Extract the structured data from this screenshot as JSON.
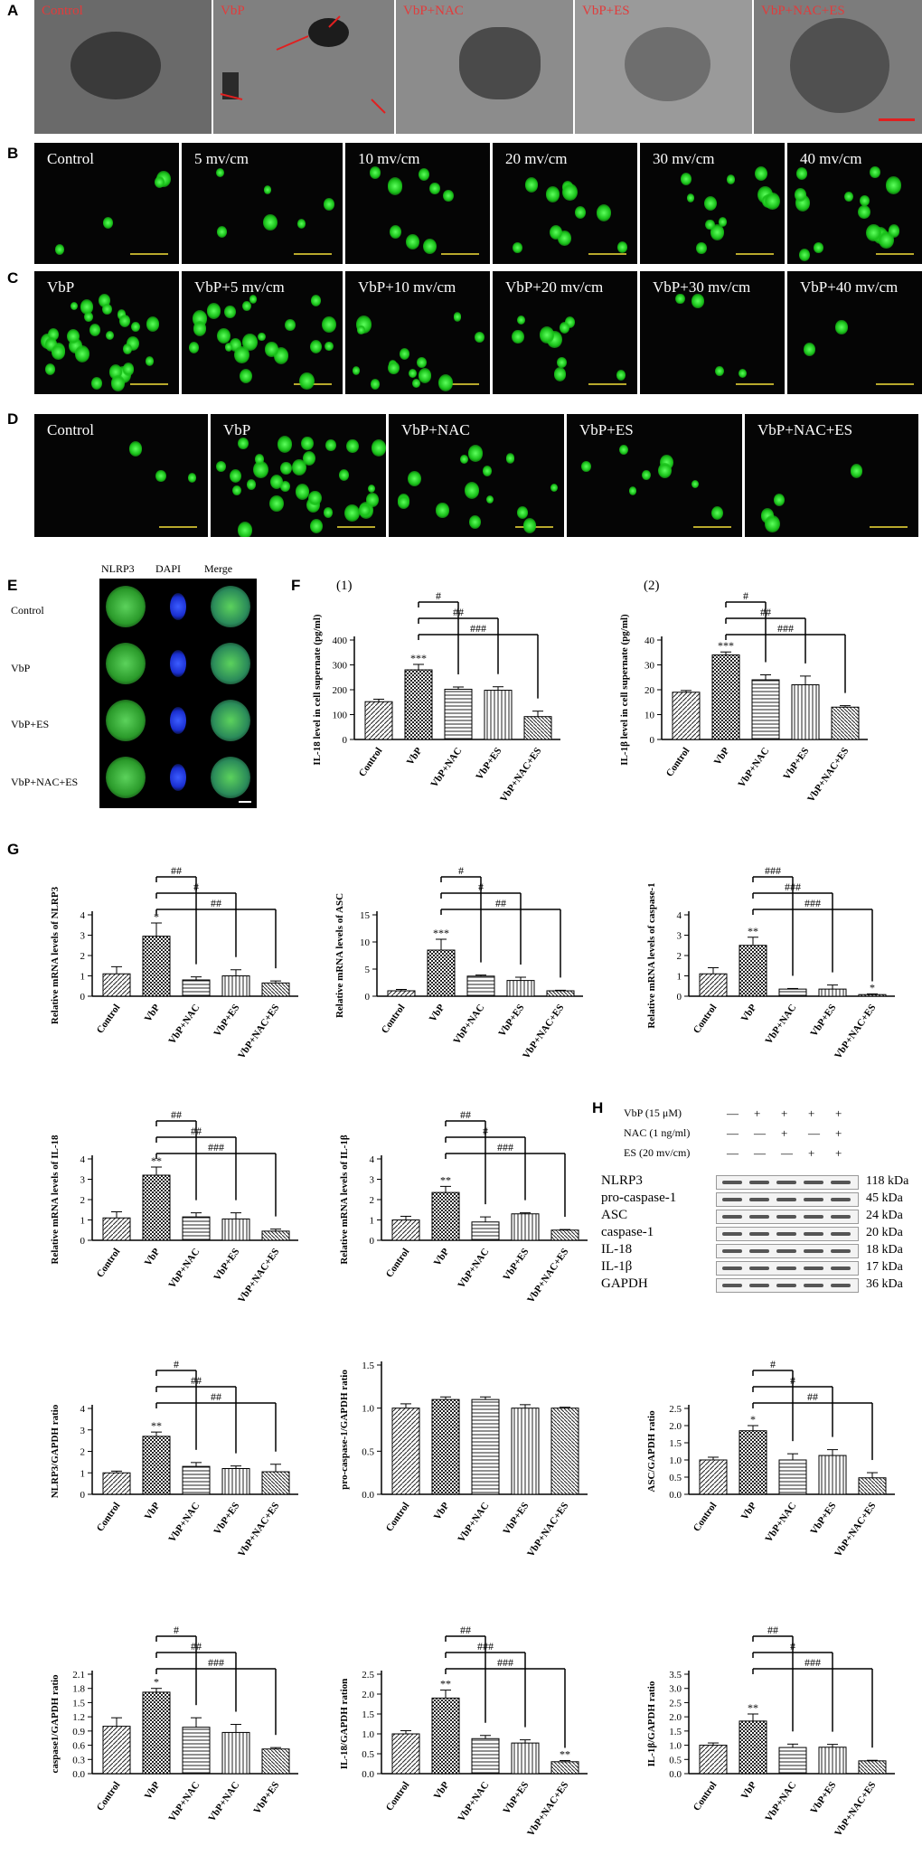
{
  "panels": {
    "A": {
      "letter": "A",
      "labels": [
        "Control",
        "VbP",
        "VbP+NAC",
        "VbP+ES",
        "VbP+NAC+ES"
      ]
    },
    "B": {
      "letter": "B",
      "labels": [
        "Control",
        "5 mv/cm",
        "10 mv/cm",
        "20 mv/cm",
        "30 mv/cm",
        "40 mv/cm"
      ]
    },
    "C": {
      "letter": "C",
      "labels": [
        "VbP",
        "VbP+5 mv/cm",
        "VbP+10 mv/cm",
        "VbP+20 mv/cm",
        "VbP+30 mv/cm",
        "VbP+40 mv/cm"
      ]
    },
    "D": {
      "letter": "D",
      "labels": [
        "Control",
        "VbP",
        "VbP+NAC",
        "VbP+ES",
        "VbP+NAC+ES"
      ]
    },
    "E": {
      "letter": "E",
      "columns": [
        "NLRP3",
        "DAPI",
        "Merge"
      ],
      "rows": [
        "Control",
        "VbP",
        "VbP+ES",
        "VbP+NAC+ES"
      ]
    },
    "F": {
      "letter": "F"
    },
    "G": {
      "letter": "G"
    },
    "H": {
      "letter": "H",
      "conditions": [
        {
          "label": "VbP (15 μM)",
          "signs": [
            "—",
            "+",
            "+",
            "+",
            "+"
          ]
        },
        {
          "label": "NAC (1 ng/ml)",
          "signs": [
            "—",
            "—",
            "+",
            "—",
            "+"
          ]
        },
        {
          "label": "ES (20 mv/cm)",
          "signs": [
            "—",
            "—",
            "—",
            "+",
            "+"
          ]
        }
      ],
      "bands": [
        {
          "name": "NLRP3",
          "kda": "118 kDa"
        },
        {
          "name": "pro-caspase-1",
          "kda": "45 kDa"
        },
        {
          "name": "ASC",
          "kda": "24 kDa"
        },
        {
          "name": "caspase-1",
          "kda": "20 kDa"
        },
        {
          "name": "IL-18",
          "kda": "18 kDa"
        },
        {
          "name": "IL-1β",
          "kda": "17 kDa"
        },
        {
          "name": "GAPDH",
          "kda": "36 kDa"
        }
      ]
    }
  },
  "chart_data": [
    {
      "type": "bar",
      "panel": "F(1)",
      "subtitle": "(1)",
      "categories": [
        "Control",
        "VbP",
        "VbP+NAC",
        "VbP+ES",
        "VbP+NAC+ES"
      ],
      "values": [
        152,
        280,
        202,
        198,
        92
      ],
      "errors": [
        10,
        22,
        9,
        14,
        22
      ],
      "ylabel": "IL-18 level in cell supernate (pg/ml)",
      "ylim": [
        0,
        400
      ],
      "yticks": [
        0,
        100,
        200,
        300,
        400
      ],
      "stars": [
        "",
        "***",
        "",
        "",
        ""
      ],
      "comparisons": [
        "#",
        "##",
        "###"
      ]
    },
    {
      "type": "bar",
      "panel": "F(2)",
      "subtitle": "(2)",
      "categories": [
        "Control",
        "VbP",
        "VbP+NAC",
        "VbP+ES",
        "VbP+NAC+ES"
      ],
      "values": [
        19,
        34,
        24,
        22,
        13
      ],
      "errors": [
        0.7,
        1.2,
        2.0,
        3.5,
        0.6
      ],
      "ylabel": "IL-1β  level in cell supernate (pg/ml)",
      "ylim": [
        0,
        40
      ],
      "yticks": [
        0,
        10,
        20,
        30,
        40
      ],
      "stars": [
        "",
        "***",
        "",
        "",
        ""
      ],
      "comparisons": [
        "#",
        "##",
        "###"
      ]
    },
    {
      "type": "bar",
      "panel": "G1",
      "categories": [
        "Control",
        "VbP",
        "VbP+NAC",
        "VbP+ES",
        "VbP+NAC+ES"
      ],
      "values": [
        1.1,
        2.95,
        0.8,
        1.0,
        0.65
      ],
      "errors": [
        0.35,
        0.65,
        0.15,
        0.3,
        0.1
      ],
      "ylabel": "Relative mRNA levels of NLRP3",
      "ylim": [
        0,
        4
      ],
      "yticks": [
        0,
        1,
        2,
        3,
        4
      ],
      "stars": [
        "",
        "*",
        "",
        "",
        ""
      ],
      "comparisons": [
        "##",
        "#",
        "##"
      ]
    },
    {
      "type": "bar",
      "panel": "G2",
      "categories": [
        "Control",
        "VbP",
        "VbP+NAC",
        "VbP+ES",
        "VbP+NAC+ES"
      ],
      "values": [
        1.0,
        8.5,
        3.7,
        2.9,
        1.0
      ],
      "errors": [
        0.25,
        2.0,
        0.2,
        0.6,
        0.1
      ],
      "ylabel": "Relative mRNA levels of ASC",
      "ylim": [
        0,
        15
      ],
      "yticks": [
        0,
        5,
        10,
        15
      ],
      "stars": [
        "",
        "***",
        "",
        "",
        ""
      ],
      "comparisons": [
        "#",
        "#",
        "##"
      ]
    },
    {
      "type": "bar",
      "panel": "G3",
      "categories": [
        "Control",
        "VbP",
        "VbP+NAC",
        "VbP+ES",
        "VbP+NAC+ES"
      ],
      "values": [
        1.1,
        2.5,
        0.35,
        0.35,
        0.08
      ],
      "errors": [
        0.3,
        0.4,
        0.03,
        0.2,
        0.03
      ],
      "ylabel": "Relative mRNA levels of caspase-1",
      "ylim": [
        0,
        4
      ],
      "yticks": [
        0,
        1,
        2,
        3,
        4
      ],
      "stars": [
        "",
        "**",
        "",
        "",
        "*"
      ],
      "comparisons": [
        "###",
        "###",
        "###"
      ]
    },
    {
      "type": "bar",
      "panel": "G4",
      "categories": [
        "Control",
        "VbP",
        "VbP+NAC",
        "VbP+ES",
        "VbP+NAC+ES"
      ],
      "values": [
        1.1,
        3.2,
        1.15,
        1.05,
        0.45
      ],
      "errors": [
        0.3,
        0.4,
        0.2,
        0.3,
        0.1
      ],
      "ylabel": "Relative mRNA levels of IL-18",
      "ylim": [
        0,
        4
      ],
      "yticks": [
        0,
        1,
        2,
        3,
        4
      ],
      "stars": [
        "",
        "**",
        "",
        "",
        ""
      ],
      "comparisons": [
        "##",
        "##",
        "###"
      ]
    },
    {
      "type": "bar",
      "panel": "G5",
      "categories": [
        "Control",
        "VbP",
        "VbP+NAC",
        "VbP+ES",
        "VbP+NAC+ES"
      ],
      "values": [
        1.0,
        2.35,
        0.9,
        1.3,
        0.5
      ],
      "errors": [
        0.18,
        0.3,
        0.25,
        0.05,
        0.03
      ],
      "ylabel": "Relative mRNA levels of IL-1β",
      "ylim": [
        0,
        4
      ],
      "yticks": [
        0,
        1,
        2,
        3,
        4
      ],
      "stars": [
        "",
        "**",
        "",
        "",
        ""
      ],
      "comparisons": [
        "##",
        "#",
        "###"
      ]
    },
    {
      "type": "bar",
      "panel": "H1",
      "categories": [
        "Control",
        "VbP",
        "VbP+NAC",
        "VbP+ES",
        "VbP+NAC+ES"
      ],
      "values": [
        1.0,
        2.7,
        1.3,
        1.2,
        1.05
      ],
      "errors": [
        0.08,
        0.2,
        0.18,
        0.12,
        0.35
      ],
      "ylabel": "NLRP3/GAPDH ratio",
      "ylim": [
        0,
        4
      ],
      "yticks": [
        0,
        1,
        2,
        3,
        4
      ],
      "stars": [
        "",
        "**",
        "",
        "",
        ""
      ],
      "comparisons": [
        "#",
        "##",
        "##"
      ]
    },
    {
      "type": "bar",
      "panel": "H2",
      "categories": [
        "Control",
        "VbP",
        "VbP+NAC",
        "VbP+ES",
        "VbP+NAC+ES"
      ],
      "values": [
        1.0,
        1.1,
        1.1,
        1.0,
        1.0
      ],
      "errors": [
        0.05,
        0.03,
        0.03,
        0.04,
        0.01
      ],
      "ylabel": "pro-caspase-1/GAPDH ratio",
      "ylim": [
        0,
        1.5
      ],
      "yticks": [
        0,
        0.5,
        1.0,
        1.5
      ],
      "stars": [
        "",
        "",
        "",
        "",
        ""
      ],
      "comparisons": []
    },
    {
      "type": "bar",
      "panel": "H3",
      "categories": [
        "Control",
        "VbP",
        "VbP+NAC",
        "VbP+ES",
        "VbP+NAC+ES"
      ],
      "values": [
        1.0,
        1.85,
        1.0,
        1.13,
        0.48
      ],
      "errors": [
        0.08,
        0.15,
        0.18,
        0.17,
        0.15
      ],
      "ylabel": "ASC/GAPDH ratio",
      "ylim": [
        0,
        2.5
      ],
      "yticks": [
        0,
        0.5,
        1.0,
        1.5,
        2.0,
        2.5
      ],
      "stars": [
        "",
        "*",
        "",
        "",
        ""
      ],
      "comparisons": [
        "#",
        "#",
        "##"
      ]
    },
    {
      "type": "bar",
      "panel": "H4",
      "categories": [
        "Control",
        "VbP",
        "VbP+NAC",
        "VbP+NAC",
        "VbP+ES"
      ],
      "values": [
        1.0,
        1.72,
        0.98,
        0.87,
        0.52
      ],
      "errors": [
        0.18,
        0.08,
        0.2,
        0.17,
        0.03
      ],
      "ylabel": "caspase1/GAPDH ratio",
      "ylim": [
        0,
        2.1
      ],
      "yticks": [
        0,
        0.3,
        0.6,
        0.9,
        1.2,
        1.5,
        1.8,
        2.1
      ],
      "stars": [
        "",
        "*",
        "",
        "",
        ""
      ],
      "comparisons": [
        "#",
        "##",
        "###"
      ]
    },
    {
      "type": "bar",
      "panel": "H5",
      "categories": [
        "Control",
        "VbP",
        "VbP+NAC",
        "VbP+ES",
        "VbP+NAC+ES"
      ],
      "values": [
        1.0,
        1.9,
        0.88,
        0.77,
        0.3
      ],
      "errors": [
        0.08,
        0.2,
        0.08,
        0.08,
        0.03
      ],
      "ylabel": "IL-18/GAPDH ration",
      "ylim": [
        0,
        2.5
      ],
      "yticks": [
        0,
        0.5,
        1.0,
        1.5,
        2.0,
        2.5
      ],
      "stars": [
        "",
        "**",
        "",
        "",
        "**"
      ],
      "comparisons": [
        "##",
        "###",
        "###"
      ]
    },
    {
      "type": "bar",
      "panel": "H6",
      "categories": [
        "Control",
        "VbP",
        "VbP+NAC",
        "VbP+ES",
        "VbP+NAC+ES"
      ],
      "values": [
        1.0,
        1.85,
        0.92,
        0.93,
        0.45
      ],
      "errors": [
        0.08,
        0.25,
        0.12,
        0.1,
        0.02
      ],
      "ylabel": "IL-1β/GAPDH ratio",
      "ylim": [
        0,
        3.5
      ],
      "yticks": [
        0,
        0.5,
        1.0,
        1.5,
        2.0,
        2.5,
        3.0,
        3.5
      ],
      "stars": [
        "",
        "**",
        "",
        "",
        ""
      ],
      "comparisons": [
        "##",
        "#",
        "###"
      ]
    }
  ]
}
